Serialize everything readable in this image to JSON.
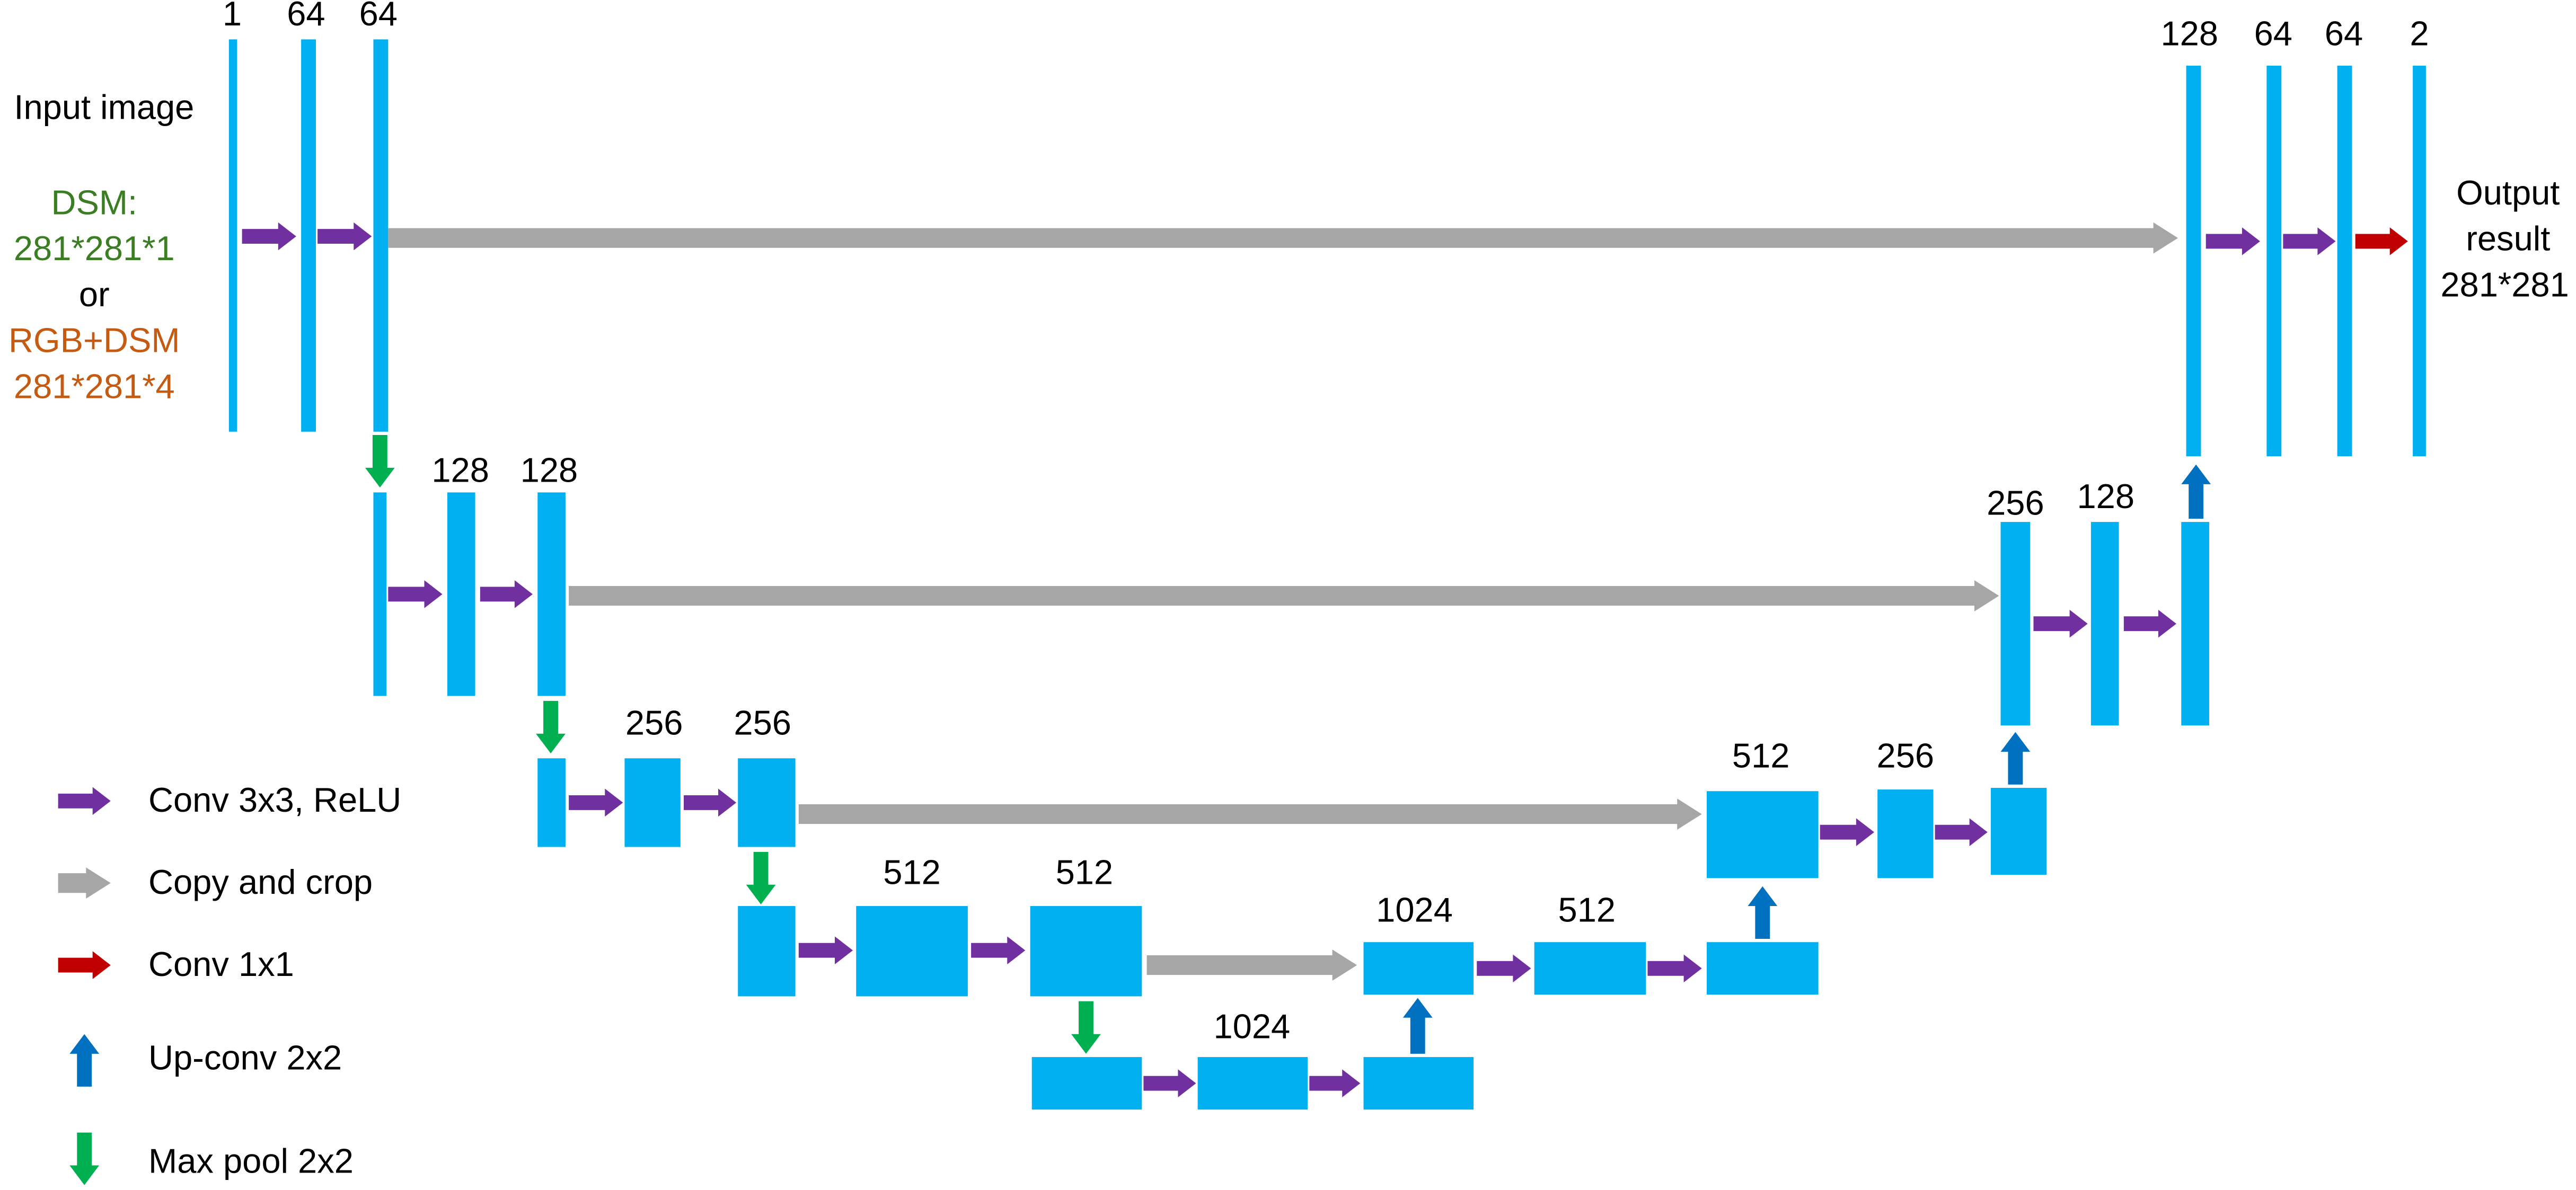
{
  "input": {
    "title": "Input image",
    "dsm": "DSM:",
    "dsm_size": "281*281*1",
    "or": "or",
    "rgb": "RGB+DSM",
    "rgb_size": "281*281*4"
  },
  "output": {
    "line1": "Output",
    "line2": "result",
    "line3": "281*281"
  },
  "blocks": [
    {
      "label": "1"
    },
    {
      "label": "64"
    },
    {
      "label": "64"
    },
    {
      "label": "128"
    },
    {
      "label": "128"
    },
    {
      "label": "256"
    },
    {
      "label": "256"
    },
    {
      "label": "512"
    },
    {
      "label": "512"
    },
    {
      "label": "1024"
    },
    {
      "label": "1024"
    },
    {
      "label": "512"
    },
    {
      "label": "512"
    },
    {
      "label": "256"
    },
    {
      "label": "256"
    },
    {
      "label": "128"
    },
    {
      "label": "128"
    },
    {
      "label": "64"
    },
    {
      "label": "64"
    },
    {
      "label": "2"
    }
  ],
  "legend": [
    {
      "label": "Conv 3x3, ReLU"
    },
    {
      "label": "Copy and crop"
    },
    {
      "label": "Conv 1x1"
    },
    {
      "label": "Up-conv 2x2"
    },
    {
      "label": "Max pool 2x2"
    }
  ]
}
